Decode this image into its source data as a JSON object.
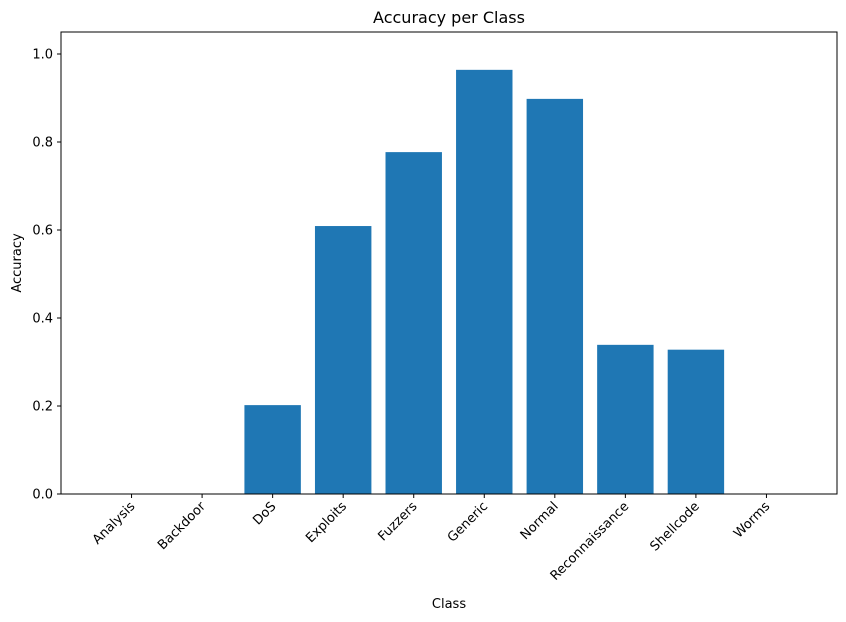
{
  "chart_data": {
    "type": "bar",
    "title": "Accuracy per Class",
    "xlabel": "Class",
    "ylabel": "Accuracy",
    "categories": [
      "Analysis",
      "Backdoor",
      "DoS",
      "Exploits",
      "Fuzzers",
      "Generic",
      "Normal",
      "Reconnaissance",
      "Shellcode",
      "Worms"
    ],
    "values": [
      0.0,
      0.0,
      0.202,
      0.609,
      0.777,
      0.964,
      0.898,
      0.339,
      0.328,
      0.0
    ],
    "ylim": [
      0,
      1.05
    ],
    "yticks": [
      "0.0",
      "0.2",
      "0.4",
      "0.6",
      "0.8",
      "1.0"
    ],
    "bar_color": "#1f77b4",
    "grid": false,
    "legend": "none"
  }
}
